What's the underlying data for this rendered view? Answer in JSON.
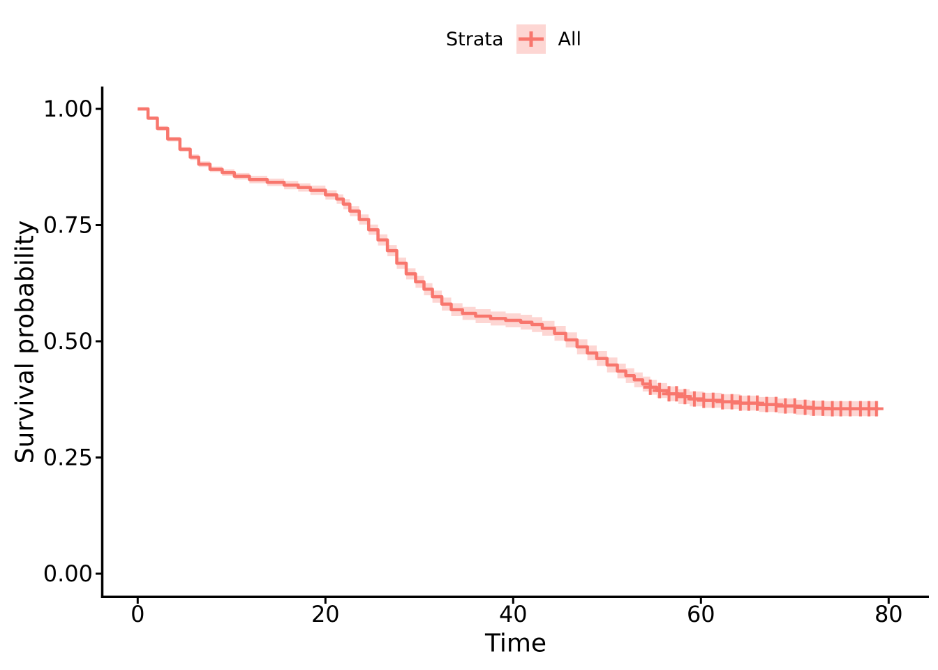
{
  "figure": {
    "background": "#FFFFFF"
  },
  "legend": {
    "title": "Strata",
    "position": "top",
    "items": [
      {
        "label": "All",
        "color": "#F8766D",
        "fill": "#FCD5D1",
        "symbol": "plus-cross"
      }
    ]
  },
  "axes": {
    "x_label": "Time",
    "y_label": "Survival probability",
    "x_tick_labels": [
      "0",
      "20",
      "40",
      "60",
      "80"
    ],
    "y_tick_labels": [
      "1.00",
      "0.75",
      "0.50",
      "0.25",
      "0.00"
    ],
    "axis_color": "#000000",
    "text_color": "#000000"
  },
  "chart_data": {
    "type": "line",
    "subtype": "kaplan-meier-step",
    "title": "",
    "xlabel": "Time",
    "ylabel": "Survival probability",
    "xlim": [
      0,
      84
    ],
    "ylim": [
      0,
      1.0
    ],
    "x_ticks": [
      0,
      20,
      40,
      60,
      80
    ],
    "y_ticks": [
      1.0,
      0.75,
      0.5,
      0.25,
      0.0
    ],
    "grid": false,
    "legend_position": "top",
    "end_time": 78.9,
    "series": [
      {
        "name": "All",
        "color": "#F8766D",
        "ci_fill": "#F8766D",
        "ci_opacity": 0.3,
        "time": [
          0,
          1.1,
          2.1,
          3.2,
          4.5,
          5.6,
          6.5,
          7.7,
          9.0,
          10.3,
          11.9,
          13.8,
          15.6,
          17.1,
          18.4,
          20.0,
          21.2,
          21.9,
          22.6,
          23.6,
          24.6,
          25.6,
          26.6,
          27.6,
          28.6,
          29.6,
          30.5,
          31.4,
          32.4,
          33.4,
          34.6,
          36.0,
          37.6,
          39.2,
          40.8,
          42.0,
          43.1,
          44.4,
          45.6,
          46.8,
          47.9,
          48.9,
          50.0,
          51.1,
          52.0,
          52.9,
          53.8,
          54.6,
          55.3,
          56.4,
          57.6,
          58.8,
          60.3,
          62.2,
          64.2,
          66.2,
          68.2,
          70.1,
          71.6,
          73.1
        ],
        "survival": [
          1.0,
          0.98,
          0.958,
          0.935,
          0.913,
          0.896,
          0.881,
          0.87,
          0.863,
          0.855,
          0.848,
          0.842,
          0.836,
          0.831,
          0.825,
          0.815,
          0.806,
          0.795,
          0.78,
          0.762,
          0.74,
          0.718,
          0.695,
          0.668,
          0.645,
          0.628,
          0.612,
          0.596,
          0.58,
          0.568,
          0.56,
          0.554,
          0.549,
          0.545,
          0.541,
          0.536,
          0.528,
          0.517,
          0.503,
          0.488,
          0.475,
          0.463,
          0.449,
          0.436,
          0.426,
          0.417,
          0.408,
          0.401,
          0.394,
          0.387,
          0.381,
          0.376,
          0.373,
          0.37,
          0.367,
          0.364,
          0.361,
          0.358,
          0.356,
          0.355
        ],
        "ci_halfwidth": [
          0.004,
          0.004,
          0.005,
          0.005,
          0.005,
          0.006,
          0.006,
          0.006,
          0.007,
          0.007,
          0.008,
          0.008,
          0.009,
          0.009,
          0.01,
          0.01,
          0.01,
          0.011,
          0.011,
          0.011,
          0.011,
          0.012,
          0.012,
          0.012,
          0.012,
          0.013,
          0.013,
          0.013,
          0.014,
          0.014,
          0.014,
          0.015,
          0.015,
          0.015,
          0.016,
          0.016,
          0.016,
          0.016,
          0.016,
          0.016,
          0.016,
          0.016,
          0.016,
          0.016,
          0.016,
          0.016,
          0.016,
          0.016,
          0.016,
          0.016,
          0.016,
          0.016,
          0.016,
          0.016,
          0.016,
          0.016,
          0.016,
          0.016,
          0.016,
          0.016
        ],
        "censor_times": [
          54.6,
          55.6,
          56.6,
          57.4,
          58.3,
          59.3,
          60.3,
          61.3,
          62.3,
          63.3,
          64.2,
          65.1,
          66.0,
          67.0,
          68.0,
          69.0,
          70.0,
          71.1,
          72.0,
          73.0,
          74.0,
          74.9,
          75.9,
          77.0,
          77.9,
          78.7
        ]
      }
    ]
  }
}
